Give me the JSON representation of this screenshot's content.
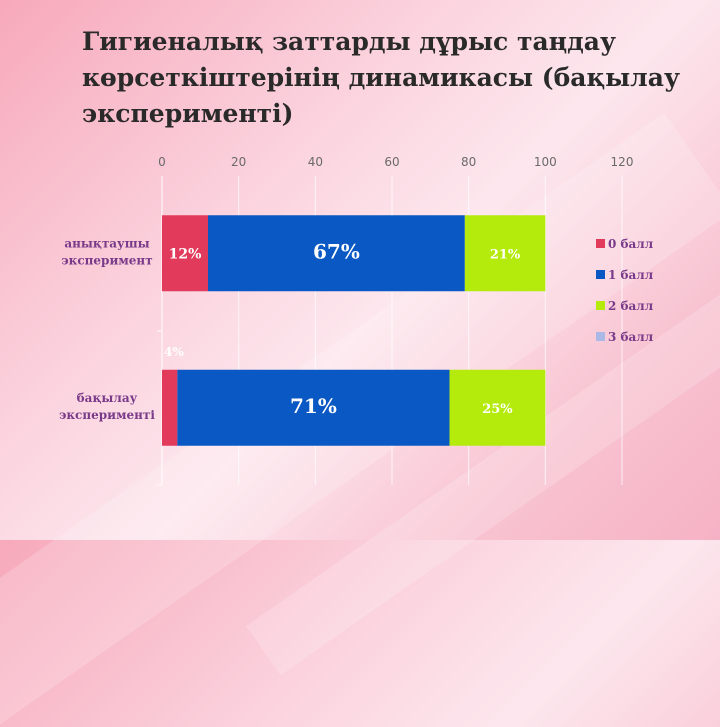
{
  "title": "Гигиеналық заттарды дұрыс таңдау көрсеткіштерінің динамикасы (бақылау эксперименті)",
  "chart_data": {
    "type": "bar",
    "orientation": "horizontal",
    "stacked": true,
    "xlim": [
      0,
      120
    ],
    "xticks": [
      "0",
      "20",
      "40",
      "60",
      "80",
      "100",
      "120"
    ],
    "x_axis_position": "top",
    "grid": true,
    "legend_position": "right",
    "categories": [
      "анықтаушы эксперимент",
      "бақылау эксперименті"
    ],
    "series": [
      {
        "name": "0 балл",
        "color": "#e23a5a",
        "values": [
          12,
          4
        ],
        "labels": [
          "12%",
          "4%"
        ]
      },
      {
        "name": "1 балл",
        "color": "#0a58c4",
        "values": [
          67,
          71
        ],
        "labels": [
          "67%",
          "71%"
        ]
      },
      {
        "name": "2 балл",
        "color": "#b4ea0c",
        "values": [
          21,
          25
        ],
        "labels": [
          "21%",
          "25%"
        ]
      },
      {
        "name": "3 балл",
        "color": "#a9b8e6",
        "values": [
          0,
          0
        ],
        "labels": [
          "",
          ""
        ]
      }
    ]
  }
}
